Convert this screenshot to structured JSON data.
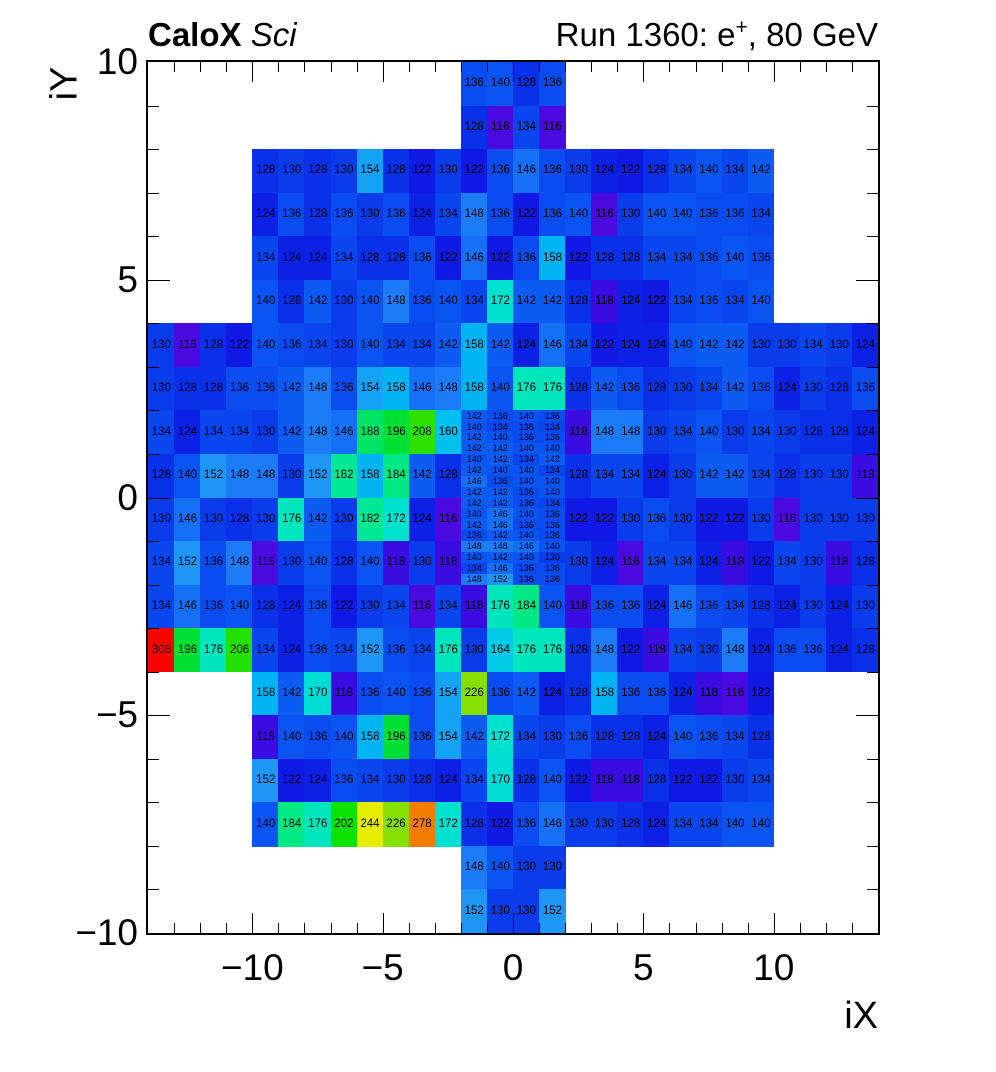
{
  "titles": {
    "left_bold": "CaloX",
    "left_italic": " Sci",
    "right_pre": "Run 1360: e",
    "right_sup": "+",
    "right_post": ", 80 GeV"
  },
  "axes": {
    "x": {
      "title": "iX",
      "min": -14,
      "max": 14,
      "major_ticks": [
        -10,
        -5,
        0,
        5,
        10
      ],
      "major_labels": [
        "−10",
        "−5",
        "0",
        "5",
        "10"
      ]
    },
    "y": {
      "title": "iY",
      "min": -10,
      "max": 10,
      "major_ticks": [
        10,
        5,
        0,
        -5,
        -10
      ],
      "major_labels": [
        "10",
        "5",
        "0",
        "−5",
        "−10"
      ]
    }
  },
  "palette": [
    [
      116,
      "#4a0ae0"
    ],
    [
      118,
      "#3a0ce2"
    ],
    [
      122,
      "#101ae4"
    ],
    [
      124,
      "#0c20e6"
    ],
    [
      128,
      "#0a30ea"
    ],
    [
      130,
      "#0a3cec"
    ],
    [
      134,
      "#0a46ee"
    ],
    [
      136,
      "#0a4cf0"
    ],
    [
      140,
      "#0a55f2"
    ],
    [
      142,
      "#0c5cf4"
    ],
    [
      146,
      "#1670f6"
    ],
    [
      148,
      "#1c7cf8"
    ],
    [
      152,
      "#1e96f6"
    ],
    [
      154,
      "#14a2f4"
    ],
    [
      158,
      "#00b4f4"
    ],
    [
      160,
      "#00c0f0"
    ],
    [
      164,
      "#00cbe4"
    ],
    [
      170,
      "#00ddd6"
    ],
    [
      172,
      "#00e2cf"
    ],
    [
      176,
      "#00e6bc"
    ],
    [
      182,
      "#00e895"
    ],
    [
      184,
      "#00e884"
    ],
    [
      188,
      "#00e465"
    ],
    [
      196,
      "#00df33"
    ],
    [
      202,
      "#0ce303"
    ],
    [
      206,
      "#22e000"
    ],
    [
      208,
      "#2ce000"
    ],
    [
      226,
      "#86df00"
    ],
    [
      244,
      "#e6ed00"
    ],
    [
      278,
      "#f57c02"
    ],
    [
      308,
      "#fb0300"
    ]
  ],
  "chart_data": {
    "type": "heatmap",
    "title": "CaloX Sci — Run 1360: e+, 80 GeV",
    "xlabel": "iX",
    "ylabel": "iY",
    "xlim": [
      -14,
      14
    ],
    "ylim": [
      -10,
      10
    ],
    "zmin": 116,
    "zmax": 308,
    "grid": false,
    "legend": false,
    "rows": [
      {
        "iy": 9,
        "segments": [
          {
            "x0": -2,
            "values": [
              136,
              140,
              128,
              136
            ]
          }
        ]
      },
      {
        "iy": 8,
        "segments": [
          {
            "x0": -2,
            "values": [
              128,
              116,
              134,
              116
            ]
          }
        ]
      },
      {
        "iy": 7,
        "segments": [
          {
            "x0": -10,
            "values": [
              128,
              130,
              128,
              130,
              154,
              128,
              122,
              130,
              122,
              136,
              146,
              136,
              130,
              124,
              122,
              128,
              134,
              140,
              134,
              142
            ]
          }
        ]
      },
      {
        "iy": 6,
        "segments": [
          {
            "x0": -10,
            "values": [
              124,
              136,
              128,
              136,
              130,
              136,
              124,
              134,
              148,
              136,
              122,
              136,
              140,
              116,
              130,
              140,
              140,
              136,
              136,
              134
            ]
          }
        ]
      },
      {
        "iy": 5,
        "segments": [
          {
            "x0": -10,
            "values": [
              134,
              124,
              124,
              134,
              128,
              128,
              136,
              122,
              146,
              122,
              136,
              158,
              122,
              128,
              128,
              134,
              134,
              136,
              140,
              136
            ]
          }
        ]
      },
      {
        "iy": 4,
        "segments": [
          {
            "x0": -10,
            "values": [
              140,
              128,
              142,
              130,
              140,
              148,
              136,
              140,
              134,
              172,
              142,
              142,
              128,
              118,
              124,
              122,
              134,
              136,
              134,
              140
            ]
          }
        ]
      },
      {
        "iy": 3,
        "segments": [
          {
            "x0": -14,
            "values": [
              130,
              116,
              128,
              122,
              140,
              136,
              134,
              130,
              140,
              134,
              134,
              142,
              158,
              142,
              124,
              146,
              134,
              122,
              124,
              124,
              140,
              142,
              142,
              130,
              130,
              134,
              130,
              124
            ]
          }
        ]
      },
      {
        "iy": 2,
        "segments": [
          {
            "x0": -14,
            "values": [
              130,
              128,
              128,
              136,
              136,
              142,
              148,
              136,
              154,
              158,
              146,
              148,
              158,
              140,
              176,
              176,
              128,
              142,
              136,
              128,
              130,
              134,
              142,
              136,
              124,
              130,
              128,
              136
            ]
          }
        ]
      },
      {
        "iy": 1,
        "segments": [
          {
            "x0": -14,
            "values": [
              134,
              124,
              134,
              134,
              130,
              142,
              148,
              146,
              188,
              196,
              208,
              160
            ]
          },
          {
            "x0": -2,
            "fine": [
              [
                142,
                136,
                140,
                136
              ],
              [
                140,
                134,
                136,
                134
              ],
              [
                142,
                140,
                136,
                136
              ],
              [
                142,
                142,
                140,
                140
              ]
            ]
          },
          {
            "x0": 2,
            "values": [
              118,
              148,
              148,
              130,
              134,
              140,
              130,
              134,
              130,
              128,
              128,
              124
            ]
          }
        ]
      },
      {
        "iy": 0,
        "segments": [
          {
            "x0": -14,
            "values": [
              128,
              140,
              152,
              148,
              148,
              130,
              152,
              182,
              158,
              184,
              142,
              128
            ]
          },
          {
            "x0": -2,
            "fine": [
              [
                140,
                142,
                134,
                142
              ],
              [
                142,
                140,
                140,
                134
              ],
              [
                146,
                136,
                140,
                140
              ],
              [
                142,
                142,
                136,
                140
              ]
            ]
          },
          {
            "x0": 2,
            "values": [
              128,
              134,
              134,
              124,
              130,
              142,
              142,
              134,
              128,
              130,
              130,
              118
            ]
          }
        ]
      },
      {
        "iy": -1,
        "segments": [
          {
            "x0": -14,
            "values": [
              130,
              146,
              130,
              128,
              130,
              176,
              142,
              130,
              182,
              172,
              124,
              116
            ]
          },
          {
            "x0": -2,
            "fine": [
              [
                142,
                142,
                136,
                134
              ],
              [
                140,
                146,
                140,
                136
              ],
              [
                142,
                146,
                136,
                136
              ],
              [
                136,
                142,
                140,
                136
              ]
            ]
          },
          {
            "x0": 2,
            "values": [
              122,
              122,
              130,
              136,
              130,
              122,
              122,
              130,
              116,
              130,
              130,
              130
            ]
          }
        ]
      },
      {
        "iy": -2,
        "segments": [
          {
            "x0": -14,
            "values": [
              134,
              152,
              136,
              148,
              116,
              130,
              140,
              128,
              140,
              118,
              130,
              118
            ]
          },
          {
            "x0": -2,
            "fine": [
              [
                148,
                148,
                146,
                140
              ],
              [
                140,
                142,
                140,
                130
              ],
              [
                134,
                146,
                136,
                136
              ],
              [
                148,
                152,
                136,
                136
              ]
            ]
          },
          {
            "x0": 2,
            "values": [
              130,
              124,
              116,
              134,
              134,
              124,
              118,
              122,
              134,
              130,
              118,
              128
            ]
          }
        ]
      },
      {
        "iy": -3,
        "segments": [
          {
            "x0": -14,
            "values": [
              134,
              146,
              136,
              140,
              128,
              124,
              136,
              122,
              130,
              134,
              116,
              134,
              118,
              176,
              184,
              140,
              118,
              136,
              136,
              124,
              146,
              136,
              134,
              128,
              124,
              130,
              124,
              130
            ]
          }
        ]
      },
      {
        "iy": -4,
        "segments": [
          {
            "x0": -14,
            "values": [
              308,
              196,
              176,
              206,
              134,
              124,
              136,
              134,
              152,
              136,
              134,
              176,
              130,
              164,
              176,
              176,
              128,
              148,
              122,
              118,
              134,
              130,
              148,
              124,
              136,
              136,
              124,
              128
            ]
          }
        ]
      },
      {
        "iy": -5,
        "segments": [
          {
            "x0": -10,
            "values": [
              158,
              142,
              170,
              118,
              136,
              140,
              136,
              154,
              226,
              136,
              142,
              124,
              128,
              158,
              136,
              136,
              124,
              118,
              116,
              122
            ]
          }
        ]
      },
      {
        "iy": -6,
        "segments": [
          {
            "x0": -10,
            "values": [
              118,
              140,
              136,
              140,
              158,
              196,
              136,
              154,
              142,
              172,
              134,
              130,
              136,
              128,
              128,
              124,
              140,
              136,
              134,
              128
            ]
          }
        ]
      },
      {
        "iy": -7,
        "segments": [
          {
            "x0": -10,
            "values": [
              152,
              122,
              124,
              136,
              134,
              130,
              128,
              124,
              134,
              170,
              128,
              140,
              122,
              118,
              118,
              128,
              122,
              122,
              130,
              134
            ]
          }
        ]
      },
      {
        "iy": -8,
        "segments": [
          {
            "x0": -10,
            "values": [
              140,
              184,
              176,
              202,
              244,
              226,
              278,
              172,
              128,
              122,
              136,
              146,
              130,
              130,
              128,
              124,
              134,
              134,
              140,
              140
            ]
          }
        ]
      },
      {
        "iy": -9,
        "segments": [
          {
            "x0": -2,
            "values": [
              148,
              140,
              130,
              130
            ]
          }
        ]
      },
      {
        "iy": -10,
        "segments": [
          {
            "x0": -2,
            "values": [
              152,
              130,
              130,
              152
            ]
          }
        ]
      }
    ]
  }
}
